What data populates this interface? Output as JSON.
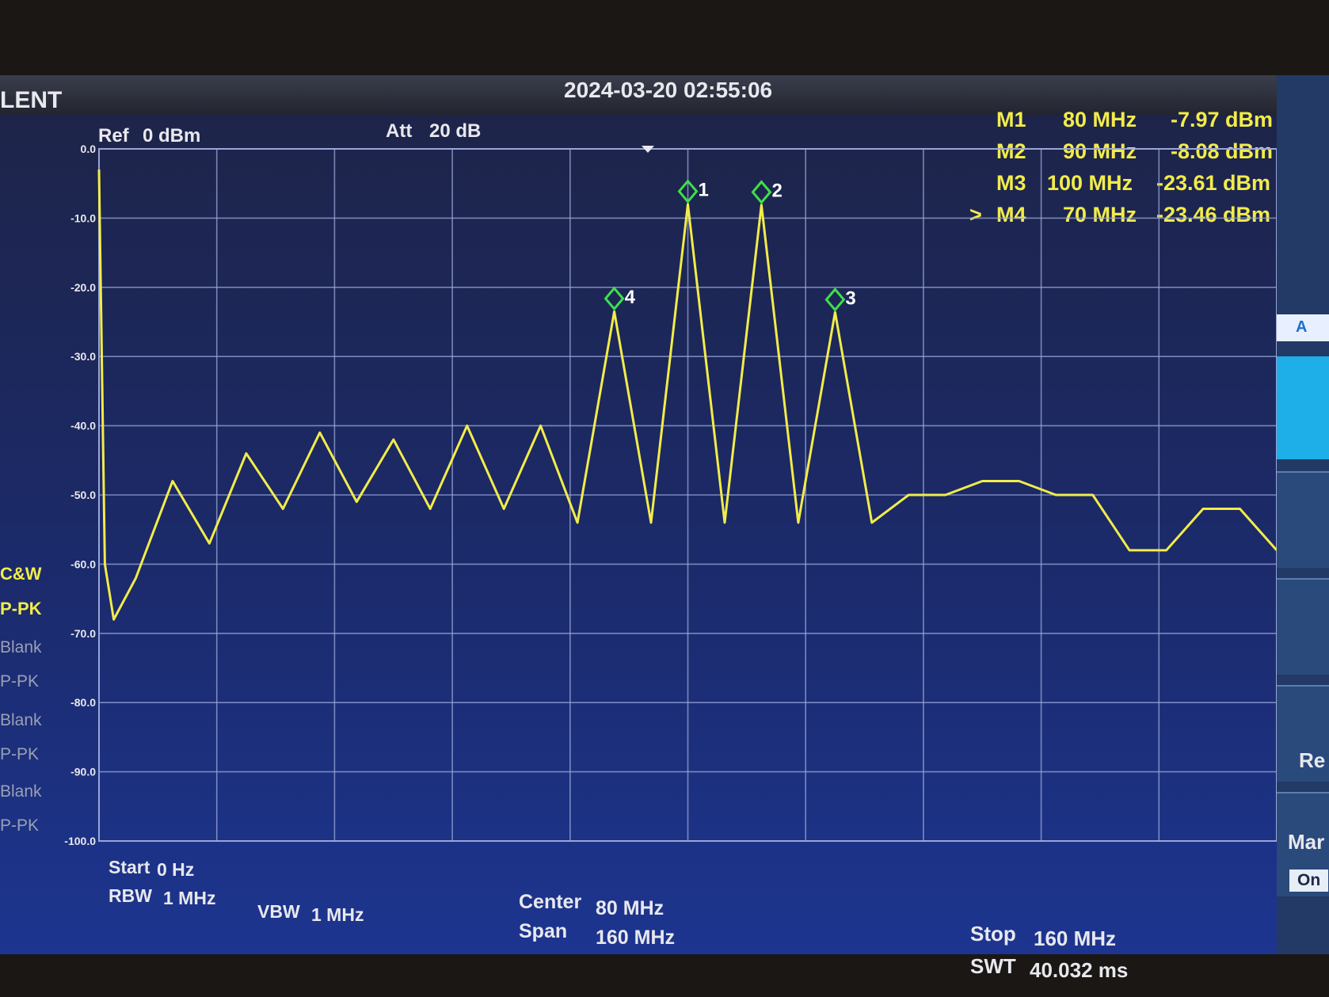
{
  "brand": "LENT",
  "datetime": "2024-03-20 02:55:06",
  "ref_level": {
    "label": "Ref",
    "value": "0 dBm"
  },
  "attenuation": {
    "label": "Att",
    "value": "20 dB"
  },
  "markers": [
    {
      "id": "M1",
      "freq": "80 MHz",
      "level": "-7.97 dBm",
      "active": false,
      "arrow": ""
    },
    {
      "id": "M2",
      "freq": "90 MHz",
      "level": "-8.08 dBm",
      "active": false,
      "arrow": ""
    },
    {
      "id": "M3",
      "freq": "100 MHz",
      "level": "-23.61 dBm",
      "active": false,
      "arrow": ""
    },
    {
      "id": "M4",
      "freq": "70 MHz",
      "level": "-23.46 dBm",
      "active": true,
      "arrow": ">"
    }
  ],
  "trace_menu": [
    "C&W",
    "P-PK",
    "Blank",
    "P-PK",
    "Blank",
    "P-PK",
    "Blank",
    "P-PK"
  ],
  "bottom": {
    "start_label": "Start",
    "start_value": "0 Hz",
    "rbw_label": "RBW",
    "rbw_value": "1 MHz",
    "vbw_label": "VBW",
    "vbw_value": "1 MHz",
    "center_label": "Center",
    "center_value": "80 MHz",
    "span_label": "Span",
    "span_value": "160 MHz",
    "stop_label": "Stop",
    "stop_value": "160 MHz",
    "swt_label": "SWT",
    "swt_value": "40.032 ms"
  },
  "right_panel": {
    "tab": "A",
    "re_label": "Re",
    "mark_label": "Mar",
    "on_label": "On"
  },
  "colors": {
    "trace": "#f2ec4a",
    "grid": "#9aa6d8",
    "marker": "#3ee04a",
    "screen": "#1b2a6a"
  },
  "chart_data": {
    "type": "line",
    "xlabel": "",
    "ylabel": "",
    "xlim": [
      0,
      160
    ],
    "ylim": [
      -100,
      0
    ],
    "y_ticks": [
      "0.0",
      "-10.0",
      "-20.0",
      "-30.0",
      "-40.0",
      "-50.0",
      "-60.0",
      "-70.0",
      "-80.0",
      "-90.0",
      "-100.0"
    ],
    "series": [
      {
        "color": "#f2ec4a",
        "x": [
          0,
          0.8,
          2,
          5,
          10,
          15,
          20,
          25,
          30,
          35,
          40,
          45,
          50,
          55,
          60,
          65,
          70,
          75,
          80,
          85,
          90,
          95,
          100,
          105,
          110,
          115,
          120,
          125,
          130,
          135,
          140,
          145,
          150,
          155,
          160
        ],
        "y": [
          -3,
          -60,
          -68,
          -62,
          -48,
          -57,
          -44,
          -52,
          -41,
          -51,
          -42,
          -52,
          -40,
          -52,
          -40,
          -54,
          -23.5,
          -54,
          -8,
          -54,
          -8.1,
          -54,
          -23.6,
          -54,
          -50,
          -50,
          -48,
          -48,
          -50,
          -50,
          -58,
          -58,
          -52,
          -52,
          -58
        ]
      }
    ],
    "marker_points": [
      {
        "label": "1",
        "x": 80,
        "y": -7.97
      },
      {
        "label": "2",
        "x": 90,
        "y": -8.08
      },
      {
        "label": "3",
        "x": 100,
        "y": -23.61
      },
      {
        "label": "4",
        "x": 70,
        "y": -23.46
      }
    ]
  }
}
